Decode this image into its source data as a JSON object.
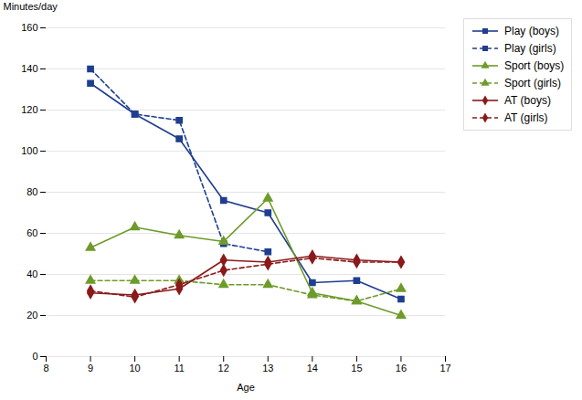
{
  "chart_data": {
    "type": "line",
    "x": [
      9,
      10,
      11,
      12,
      13,
      14,
      15,
      16
    ],
    "series": [
      {
        "name": "Play (boys)",
        "color": "#1F3E8F",
        "line_style": "solid",
        "marker": "square",
        "values": [
          133,
          118,
          106,
          76,
          70,
          36,
          37,
          28
        ]
      },
      {
        "name": "Play (girls)",
        "color": "#1F3E8F",
        "line_style": "dashed",
        "marker": "square",
        "values": [
          140,
          118,
          115,
          55,
          51,
          null,
          null,
          null
        ]
      },
      {
        "name": "Sport (boys)",
        "color": "#6E9B2A",
        "line_style": "solid",
        "marker": "triangle",
        "values": [
          53,
          63,
          59,
          56,
          77,
          31,
          27,
          20
        ]
      },
      {
        "name": "Sport (girls)",
        "color": "#6E9B2A",
        "line_style": "dashed",
        "marker": "triangle",
        "values": [
          37,
          37,
          37,
          35,
          35,
          30,
          27,
          33
        ]
      },
      {
        "name": "AT (boys)",
        "color": "#8B1A1A",
        "line_style": "solid",
        "marker": "diamond",
        "values": [
          31,
          30,
          33,
          47,
          46,
          49,
          47,
          46
        ]
      },
      {
        "name": "AT (girls)",
        "color": "#8B1A1A",
        "line_style": "dashed",
        "marker": "diamond",
        "values": [
          32,
          29,
          35,
          42,
          45,
          48,
          46,
          46
        ]
      }
    ],
    "xlabel": "Age",
    "ylabel": "Minutes/day",
    "xlim": [
      8,
      17
    ],
    "ylim": [
      0,
      160
    ],
    "xticks": [
      8,
      9,
      10,
      11,
      12,
      13,
      14,
      15,
      16,
      17
    ],
    "yticks": [
      0,
      20,
      40,
      60,
      80,
      100,
      120,
      140,
      160
    ],
    "grid": true,
    "legend": "upper right"
  }
}
